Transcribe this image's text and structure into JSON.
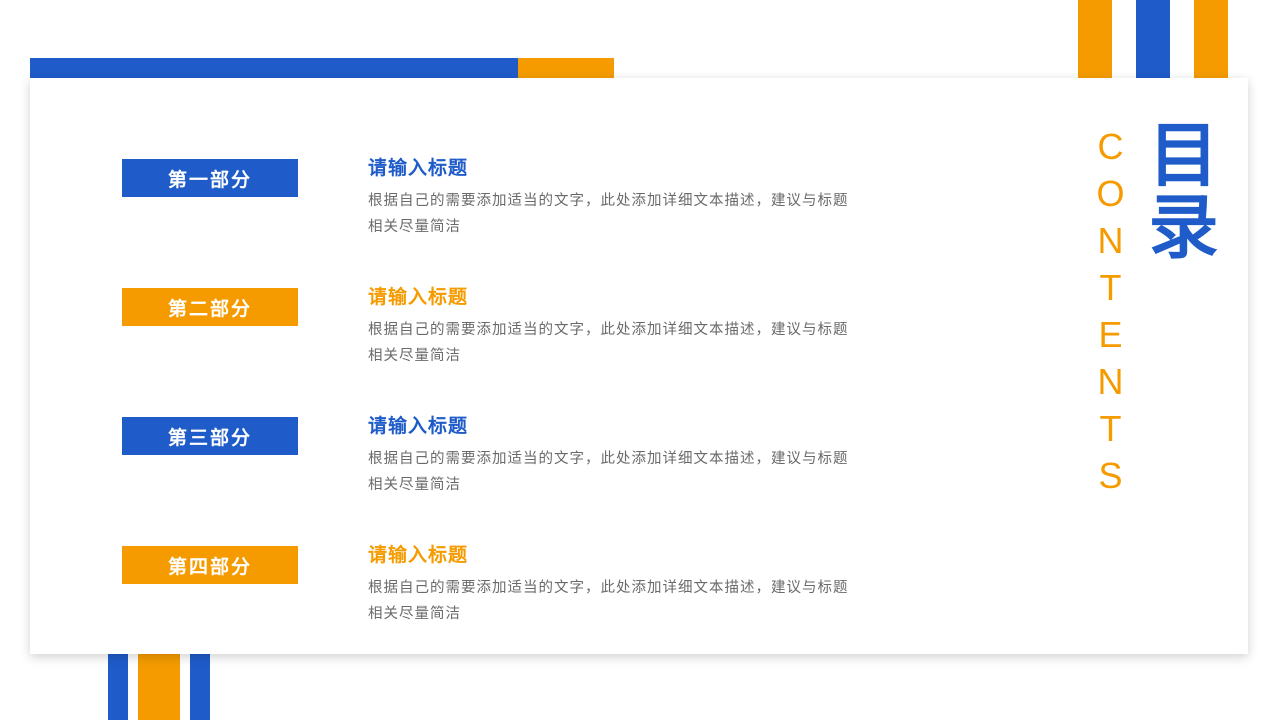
{
  "colors": {
    "blue": "#1f5cc9",
    "orange": "#f59b00",
    "text_gray": "#6a6a6a",
    "white": "#ffffff"
  },
  "header": {
    "title_cn": "目录",
    "title_en": "CONTENTS",
    "title_cn_color": "#1f5cc9",
    "title_en_color": "#f59b00",
    "title_cn_fontsize": 70,
    "title_en_fontsize": 36
  },
  "decorations": {
    "top_right_bars": [
      "#f59b00",
      "#1f5cc9",
      "#f59b00"
    ],
    "top_bar_blue": "#1f5cc9",
    "top_bar_orange": "#f59b00",
    "bottom_bars": [
      "#1f5cc9",
      "#f59b00",
      "#1f5cc9"
    ]
  },
  "sections": [
    {
      "label": "第一部分",
      "label_bg": "#1f5cc9",
      "title": "请输入标题",
      "title_color": "#1f5cc9",
      "desc": "根据自己的需要添加适当的文字，此处添加详细文本描述，建议与标题相关尽量简洁"
    },
    {
      "label": "第二部分",
      "label_bg": "#f59b00",
      "title": "请输入标题",
      "title_color": "#f59b00",
      "desc": "根据自己的需要添加适当的文字，此处添加详细文本描述，建议与标题相关尽量简洁"
    },
    {
      "label": "第三部分",
      "label_bg": "#1f5cc9",
      "title": "请输入标题",
      "title_color": "#1f5cc9",
      "desc": "根据自己的需要添加适当的文字，此处添加详细文本描述，建议与标题相关尽量简洁"
    },
    {
      "label": "第四部分",
      "label_bg": "#f59b00",
      "title": "请输入标题",
      "title_color": "#f59b00",
      "desc": "根据自己的需要添加适当的文字，此处添加详细文本描述，建议与标题相关尽量简洁"
    }
  ]
}
